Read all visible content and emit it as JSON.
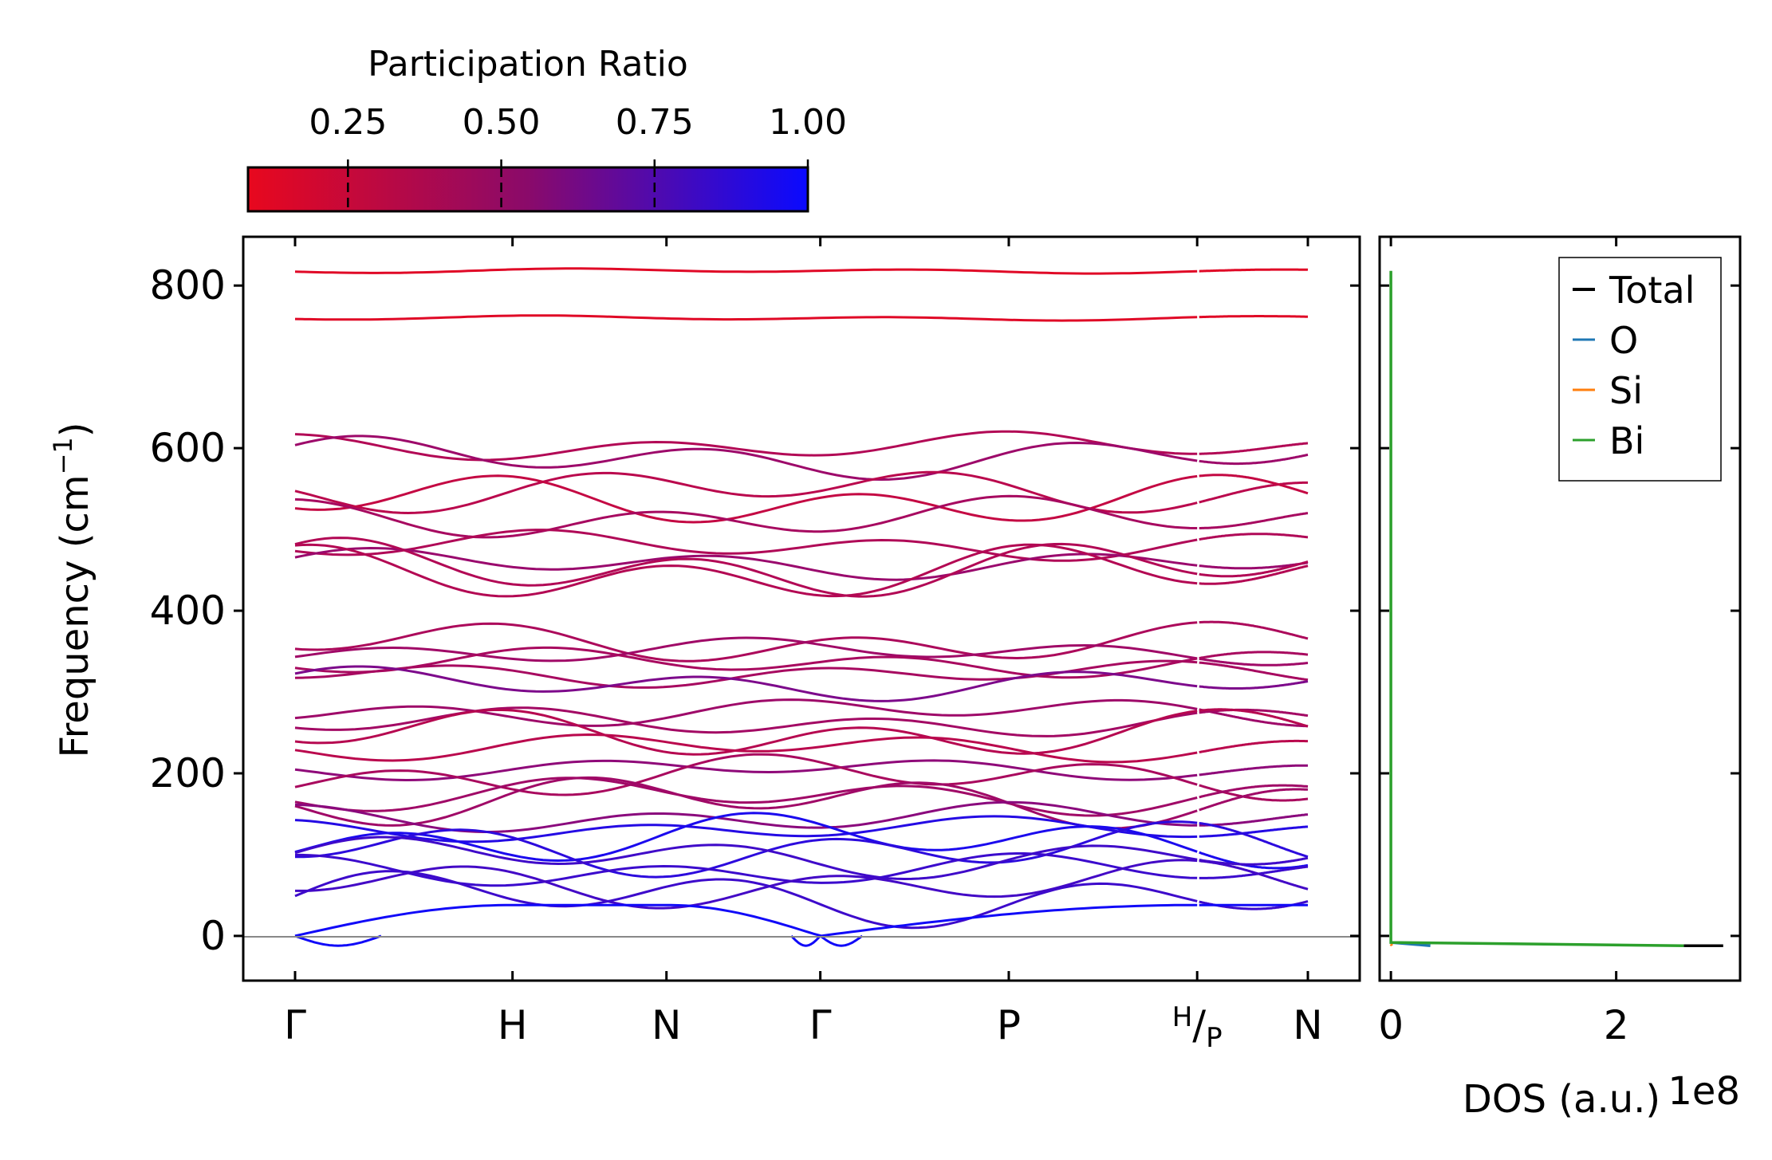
{
  "chart_data": [
    {
      "type": "line",
      "title": "",
      "xlabel": "",
      "ylabel": "Frequency (cm",
      "ylabel_sup": "−1",
      "ylabel_close": ")",
      "ylim": [
        -55,
        860
      ],
      "yticks": [
        0,
        200,
        400,
        600,
        800
      ],
      "ytick_labels": [
        "0",
        "200",
        "400",
        "600",
        "800"
      ],
      "kpath": [
        {
          "label": "Γ",
          "dist": 0.0
        },
        {
          "label": "H",
          "dist": 0.2147
        },
        {
          "label": "N",
          "dist": 0.3667
        },
        {
          "label": "Γ",
          "dist": 0.5186
        },
        {
          "label": "P",
          "dist": 0.7047
        },
        {
          "label": "H",
          "sub": "P",
          "dist": 0.8907
        },
        {
          "label": "N",
          "dist": 1.0
        }
      ],
      "segment_break": 0.8907,
      "colorbar": {
        "title": "Participation Ratio",
        "min": 0.087,
        "max": 1.0,
        "ticks": [
          0.25,
          0.5,
          0.75,
          1.0
        ],
        "tick_labels": [
          "0.25",
          "0.50",
          "0.75",
          "1.00"
        ],
        "low_color": "#e8081e",
        "high_color": "#0a0aff"
      },
      "series_color_by": "participation_ratio",
      "bands_at_gamma": [
        818,
        760,
        602,
        588,
        548,
        535,
        514,
        480,
        458,
        452,
        446,
        360,
        350,
        336,
        322,
        310,
        276,
        262,
        248,
        232,
        205,
        196,
        172,
        166,
        145,
        131,
        118,
        106,
        97,
        80,
        63,
        47,
        0
      ],
      "band_sample": [
        {
          "name": "band-818",
          "k": [
            0,
            0.2147,
            0.3667,
            0.5186,
            0.7047,
            0.8907,
            1.0
          ],
          "freq": [
            818,
            820,
            819,
            818,
            819,
            820,
            818
          ],
          "participation_ratio": 0.12
        },
        {
          "name": "band-760",
          "k": [
            0,
            0.2147,
            0.3667,
            0.5186,
            0.7047,
            0.8907,
            1.0
          ],
          "freq": [
            760,
            760,
            760,
            760,
            761,
            760,
            760
          ],
          "participation_ratio": 0.15
        },
        {
          "name": "band-602",
          "k": [
            0,
            0.2147,
            0.3667,
            0.5186,
            0.7047,
            0.8907,
            1.0
          ],
          "freq": [
            602,
            619,
            605,
            602,
            598,
            619,
            605
          ],
          "participation_ratio": 0.33
        },
        {
          "name": "band-0 (acoustic)",
          "k": [
            0,
            0.2147,
            0.3667,
            0.5186,
            0.7047,
            0.8907,
            1.0
          ],
          "freq": [
            0,
            40,
            30,
            0,
            35,
            42,
            28
          ],
          "participation_ratio": 0.95
        }
      ]
    },
    {
      "type": "line",
      "xlabel": "DOS (a.u.)",
      "x_offset_text": "1e8",
      "xlim": [
        -0.1,
        3.1
      ],
      "xticks": [
        0,
        2
      ],
      "xtick_labels": [
        "0",
        "2"
      ],
      "ylim": [
        -55,
        860
      ],
      "legend": {
        "placement": "top-right",
        "entries": [
          "Total",
          "O",
          "Si",
          "Bi"
        ]
      },
      "series": [
        {
          "name": "Total",
          "color": "#000000",
          "x": [
            2.6,
            2.95
          ],
          "y": [
            -12,
            -12
          ]
        },
        {
          "name": "O",
          "color": "#1f77b4",
          "x": [
            0.0,
            0.35
          ],
          "y": [
            -8,
            -12
          ]
        },
        {
          "name": "Si",
          "color": "#ff7f0e",
          "x": [
            0.0,
            0.01
          ],
          "y": [
            -10,
            -12
          ]
        },
        {
          "name": "Bi",
          "color": "#2ca02c",
          "x": [
            0.0,
            0.0,
            0.0,
            2.6
          ],
          "y": [
            818,
            760,
            -8,
            -12
          ]
        }
      ]
    }
  ]
}
